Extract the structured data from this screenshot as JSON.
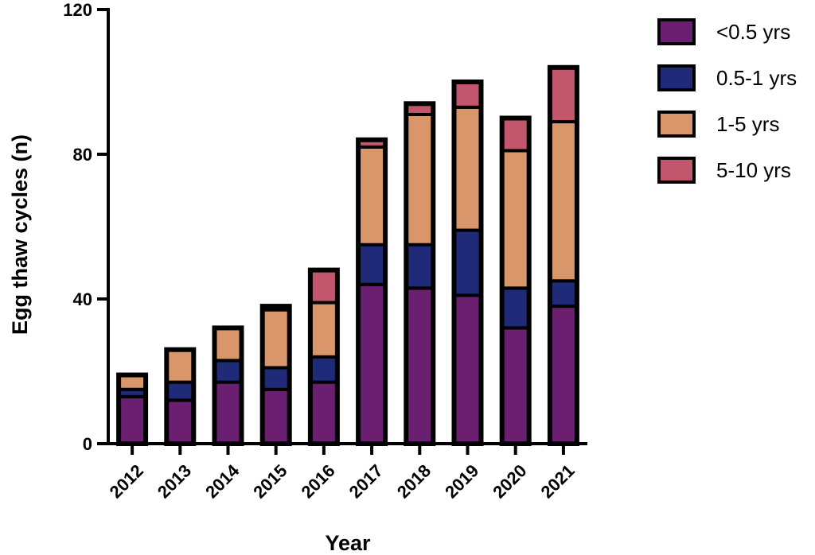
{
  "chart_data": {
    "type": "bar",
    "stacked": true,
    "categories": [
      "2012",
      "2013",
      "2014",
      "2015",
      "2016",
      "2017",
      "2018",
      "2019",
      "2020",
      "2021"
    ],
    "series": [
      {
        "name": "<0.5 yrs",
        "color": "#6a1f70",
        "values": [
          13,
          12,
          17,
          15,
          17,
          44,
          43,
          41,
          32,
          38
        ]
      },
      {
        "name": "0.5-1 yrs",
        "color": "#1f2a78",
        "values": [
          2,
          5,
          6,
          6,
          7,
          11,
          12,
          18,
          11,
          7
        ]
      },
      {
        "name": "1-5 yrs",
        "color": "#d9966a",
        "values": [
          4,
          9,
          9,
          16,
          15,
          27,
          36,
          34,
          38,
          44
        ]
      },
      {
        "name": "5-10 yrs",
        "color": "#c2566c",
        "values": [
          0,
          0,
          0,
          1,
          9,
          2,
          3,
          7,
          9,
          15
        ]
      }
    ],
    "title": "",
    "xlabel": "Year",
    "ylabel": "Egg thaw cycles (n)",
    "ylim": [
      0,
      120
    ],
    "yticks": [
      "0",
      "40",
      "80",
      "120"
    ],
    "legend_position": "top-right",
    "grid": false
  }
}
